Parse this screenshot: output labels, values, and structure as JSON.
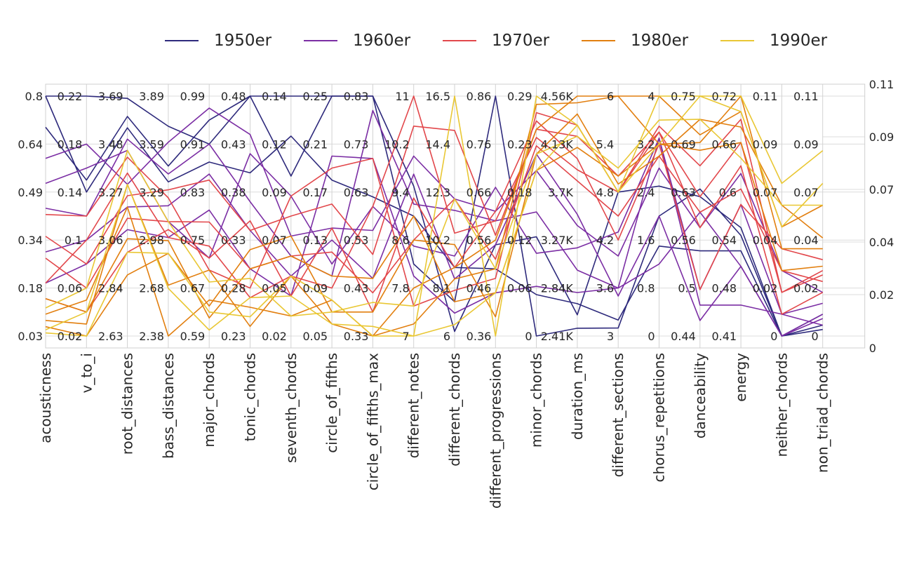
{
  "chart_data": {
    "type": "parallel_coordinates",
    "legend": {
      "placement": "top",
      "entries": [
        {
          "name": "1950er",
          "color": "#2e2a7c"
        },
        {
          "name": "1960er",
          "color": "#7b2ea4"
        },
        {
          "name": "1970er",
          "color": "#e2474b"
        },
        {
          "name": "1980er",
          "color": "#e27f0f"
        },
        {
          "name": "1990er",
          "color": "#e9c734"
        }
      ]
    },
    "axes": [
      {
        "name": "acousticness",
        "range": [
          0.03,
          0.8
        ],
        "ticks": [
          "0.8",
          "0.64",
          "0.49",
          "0.34",
          "0.18",
          "0.03"
        ]
      },
      {
        "name": "v_to_i",
        "range": [
          0.02,
          0.22
        ],
        "ticks": [
          "0.22",
          "0.18",
          "0.14",
          "0.1",
          "0.06",
          "0.02"
        ]
      },
      {
        "name": "root_distances",
        "range": [
          2.63,
          3.69
        ],
        "ticks": [
          "3.69",
          "3.48",
          "3.27",
          "3.06",
          "2.84",
          "2.63"
        ]
      },
      {
        "name": "bass_distances",
        "range": [
          2.38,
          3.89
        ],
        "ticks": [
          "3.89",
          "3.59",
          "3.29",
          "2.98",
          "2.68",
          "2.38"
        ]
      },
      {
        "name": "major_chords",
        "range": [
          0.59,
          0.99
        ],
        "ticks": [
          "0.99",
          "0.91",
          "0.83",
          "0.75",
          "0.67",
          "0.59"
        ]
      },
      {
        "name": "tonic_chords",
        "range": [
          0.23,
          0.48
        ],
        "ticks": [
          "0.48",
          "0.43",
          "0.38",
          "0.33",
          "0.28",
          "0.23"
        ]
      },
      {
        "name": "seventh_chords",
        "range": [
          0.02,
          0.14
        ],
        "ticks": [
          "0.14",
          "0.12",
          "0.09",
          "0.07",
          "0.05",
          "0.02"
        ]
      },
      {
        "name": "circle_of_fifths",
        "range": [
          0.05,
          0.25
        ],
        "ticks": [
          "0.25",
          "0.21",
          "0.17",
          "0.13",
          "0.09",
          "0.05"
        ]
      },
      {
        "name": "circle_of_fifths_max",
        "range": [
          0.33,
          0.83
        ],
        "ticks": [
          "0.83",
          "0.73",
          "0.63",
          "0.53",
          "0.43",
          "0.33"
        ]
      },
      {
        "name": "different_notes",
        "range": [
          7,
          11
        ],
        "ticks": [
          "11",
          "10.2",
          "9.4",
          "8.6",
          "7.8",
          "7"
        ]
      },
      {
        "name": "different_chords",
        "range": [
          6,
          16.5
        ],
        "ticks": [
          "16.5",
          "14.4",
          "12.3",
          "10.2",
          "8.1",
          "6"
        ]
      },
      {
        "name": "different_progressions",
        "range": [
          0.36,
          0.86
        ],
        "ticks": [
          "0.86",
          "0.76",
          "0.66",
          "0.56",
          "0.46",
          "0.36"
        ]
      },
      {
        "name": "minor_chords",
        "range": [
          0,
          0.29
        ],
        "ticks": [
          "0.29",
          "0.23",
          "0.18",
          "0.12",
          "0.06",
          "0"
        ]
      },
      {
        "name": "duration_ms",
        "range": [
          2410,
          4560
        ],
        "ticks": [
          "4.56K",
          "4.13K",
          "3.7K",
          "3.27K",
          "2.84K",
          "2.41K"
        ]
      },
      {
        "name": "different_sections",
        "range": [
          3,
          6
        ],
        "ticks": [
          "6",
          "5.4",
          "4.8",
          "4.2",
          "3.6",
          "3"
        ]
      },
      {
        "name": "chorus_repetitions",
        "range": [
          0,
          4
        ],
        "ticks": [
          "4",
          "3.2",
          "2.4",
          "1.6",
          "0.8",
          "0"
        ]
      },
      {
        "name": "danceability",
        "range": [
          0.44,
          0.75
        ],
        "ticks": [
          "0.75",
          "0.69",
          "0.63",
          "0.56",
          "0.5",
          "0.44"
        ]
      },
      {
        "name": "energy",
        "range": [
          0.41,
          0.72
        ],
        "ticks": [
          "0.72",
          "0.66",
          "0.6",
          "0.54",
          "0.48",
          "0.41"
        ]
      },
      {
        "name": "neither_chords",
        "range": [
          0,
          0.11
        ],
        "ticks": [
          "0.11",
          "0.09",
          "0.07",
          "0.04",
          "0.02",
          "0"
        ]
      },
      {
        "name": "non_triad_chords",
        "range": [
          0,
          0.11
        ],
        "ticks": [
          "0.11",
          "0.09",
          "0.07",
          "0.04",
          "0.02",
          "0"
        ]
      }
    ],
    "series": [
      {
        "name": "1950er",
        "values": [
          0.8,
          0.22,
          3.68,
          3.7,
          0.91,
          0.48,
          0.14,
          0.25,
          0.83,
          8.2,
          7.5,
          0.86,
          0,
          2480,
          3.1,
          2.0,
          0.63,
          0.54,
          0,
          0.003
        ]
      },
      {
        "name": "1950er",
        "values": [
          0.7,
          0.15,
          3.6,
          3.45,
          0.95,
          0.48,
          0.1,
          0.25,
          0.83,
          9.5,
          6.2,
          0.55,
          0.12,
          2600,
          4.8,
          2.5,
          0.62,
          0.55,
          0,
          0.01
        ]
      },
      {
        "name": "1950er",
        "values": [
          0.8,
          0.14,
          3.55,
          3.35,
          0.88,
          0.4,
          0.12,
          0.18,
          0.62,
          9.0,
          9.0,
          0.5,
          0.05,
          2700,
          3.2,
          1.5,
          0.55,
          0.52,
          0,
          0.005
        ]
      },
      {
        "name": "1960er",
        "values": [
          0.6,
          0.18,
          3.3,
          3.6,
          0.97,
          0.44,
          0.07,
          0.14,
          0.55,
          10.0,
          12.0,
          0.62,
          0.2,
          3400,
          4.0,
          2.8,
          0.58,
          0.62,
          0.03,
          0.02
        ]
      },
      {
        "name": "1960er",
        "values": [
          0.44,
          0.12,
          3.5,
          3.4,
          0.91,
          0.37,
          0.06,
          0.1,
          0.8,
          9.2,
          11.5,
          0.6,
          0.15,
          3000,
          3.6,
          3.3,
          0.5,
          0.58,
          0.01,
          0.015
        ]
      },
      {
        "name": "1960er",
        "values": [
          0.3,
          0.1,
          3.2,
          3.2,
          0.86,
          0.34,
          0.05,
          0.13,
          0.45,
          9.7,
          8.5,
          0.55,
          0.22,
          3500,
          3.5,
          2.0,
          0.46,
          0.5,
          0,
          0.01
        ]
      },
      {
        "name": "1960er",
        "values": [
          0.2,
          0.08,
          3.1,
          3.0,
          0.8,
          0.3,
          0.04,
          0.2,
          0.7,
          8.0,
          7.0,
          0.45,
          0.06,
          2800,
          3.6,
          1.2,
          0.6,
          0.5,
          0,
          0.008
        ]
      },
      {
        "name": "1960er",
        "values": [
          0.52,
          0.16,
          3.45,
          3.1,
          0.72,
          0.42,
          0.09,
          0.11,
          0.6,
          8.5,
          9.5,
          0.67,
          0.1,
          3200,
          4.3,
          3.3,
          0.48,
          0.45,
          0.01,
          0.005
        ]
      },
      {
        "name": "1970er",
        "values": [
          0.35,
          0.08,
          3.25,
          3.3,
          0.85,
          0.34,
          0.08,
          0.16,
          0.5,
          10.5,
          15.0,
          0.57,
          0.25,
          4200,
          5.0,
          3.4,
          0.62,
          0.66,
          0.02,
          0.03
        ]
      },
      {
        "name": "1970er",
        "values": [
          0.28,
          0.06,
          3.15,
          3.1,
          0.78,
          0.3,
          0.06,
          0.12,
          0.42,
          8.6,
          12.0,
          0.52,
          0.23,
          3800,
          4.5,
          3.0,
          0.6,
          0.6,
          0.03,
          0.025
        ]
      },
      {
        "name": "1970er",
        "values": [
          0.2,
          0.1,
          3.35,
          3.0,
          0.74,
          0.27,
          0.05,
          0.09,
          0.6,
          11,
          10.5,
          0.6,
          0.24,
          3900,
          4.8,
          3.4,
          0.58,
          0.63,
          0.01,
          0.02
        ]
      },
      {
        "name": "1970er",
        "values": [
          0.15,
          0.04,
          3.0,
          3.05,
          0.72,
          0.35,
          0.04,
          0.14,
          0.38,
          9.3,
          9.0,
          0.62,
          0.26,
          4000,
          4.2,
          3.2,
          0.5,
          0.58,
          0.04,
          0.035
        ]
      },
      {
        "name": "1970er",
        "values": [
          0.42,
          0.12,
          3.42,
          3.25,
          0.7,
          0.28,
          0.09,
          0.19,
          0.7,
          7.5,
          8.0,
          0.48,
          0.27,
          4300,
          4.8,
          3.5,
          0.66,
          0.69,
          0.02,
          0.028
        ]
      },
      {
        "name": "1980er",
        "values": [
          0.1,
          0.05,
          3.2,
          2.38,
          0.65,
          0.26,
          0.03,
          0.08,
          0.33,
          7.2,
          8.5,
          0.5,
          0.28,
          4500,
          6.0,
          4.0,
          0.7,
          0.7,
          0.05,
          0.06
        ]
      },
      {
        "name": "1980er",
        "values": [
          0.08,
          0.03,
          3.3,
          2.7,
          0.7,
          0.24,
          0.05,
          0.06,
          0.33,
          7.8,
          9.0,
          0.56,
          0.25,
          4560,
          6.0,
          3.2,
          0.69,
          0.72,
          0.04,
          0.04
        ]
      },
      {
        "name": "1980er",
        "values": [
          0.15,
          0.04,
          3.06,
          2.98,
          0.62,
          0.3,
          0.06,
          0.1,
          0.45,
          9.0,
          7.5,
          0.45,
          0.2,
          4100,
          5.0,
          3.2,
          0.68,
          0.66,
          0.03,
          0.032
        ]
      },
      {
        "name": "1980er",
        "values": [
          0.06,
          0.02,
          2.9,
          2.9,
          0.64,
          0.32,
          0.07,
          0.07,
          0.38,
          8.6,
          10.0,
          0.4,
          0.22,
          4400,
          4.9,
          3.0,
          0.72,
          0.68,
          0.06,
          0.045
        ]
      },
      {
        "name": "1990er",
        "values": [
          0.05,
          0.04,
          3.3,
          2.68,
          0.6,
          0.27,
          0.04,
          0.06,
          0.35,
          7.0,
          16.5,
          0.36,
          0.29,
          4300,
          4.8,
          4.0,
          0.75,
          0.72,
          0.07,
          0.085
        ]
      },
      {
        "name": "1990er",
        "values": [
          0.04,
          0.02,
          3.0,
          2.9,
          0.63,
          0.25,
          0.05,
          0.08,
          0.33,
          7.0,
          6.5,
          0.45,
          0.2,
          4300,
          4.8,
          3.2,
          0.75,
          0.7,
          0.05,
          0.07
        ]
      },
      {
        "name": "1990er",
        "values": [
          0.12,
          0.06,
          3.45,
          3.1,
          0.68,
          0.29,
          0.03,
          0.07,
          0.4,
          7.5,
          12.0,
          0.5,
          0.22,
          4200,
          5.1,
          3.6,
          0.72,
          0.64,
          0.06,
          0.06
        ]
      }
    ]
  }
}
